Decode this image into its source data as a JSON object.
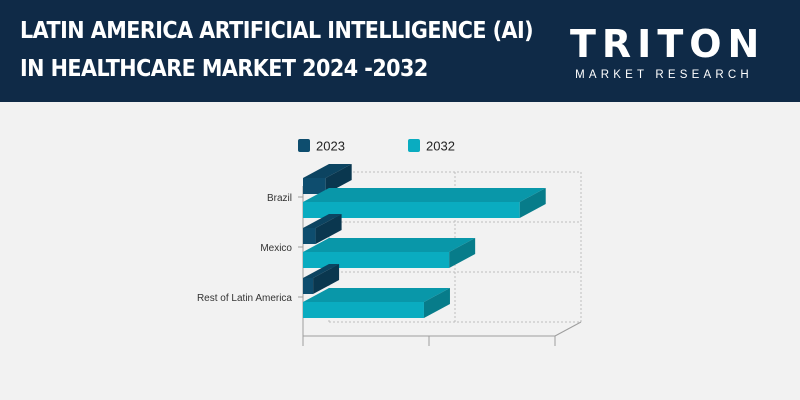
{
  "header": {
    "title_line1": "LATIN AMERICA ARTIFICIAL INTELLIGENCE (AI)",
    "title_line2": "IN HEALTHCARE MARKET 2024 -2032",
    "logo_text": "TRITON",
    "logo_subtext": "MARKET RESEARCH"
  },
  "colors": {
    "header_bg": "#0f2a47",
    "background": "#f2f2f2",
    "series_2023": "#0e4d6e",
    "series_2032": "#0aacc0"
  },
  "chart_data": {
    "type": "bar",
    "orientation": "horizontal",
    "style": "3d",
    "categories": [
      "Brazil",
      "Mexico",
      "Rest of Latin America"
    ],
    "series": [
      {
        "name": "2023",
        "values": [
          0.45,
          0.25,
          0.2
        ]
      },
      {
        "name": "2032",
        "values": [
          4.3,
          2.9,
          2.4
        ]
      }
    ],
    "xlim": [
      0,
      5
    ],
    "x_tick_labels_shown": false,
    "legend_position": "top",
    "grid": true
  }
}
